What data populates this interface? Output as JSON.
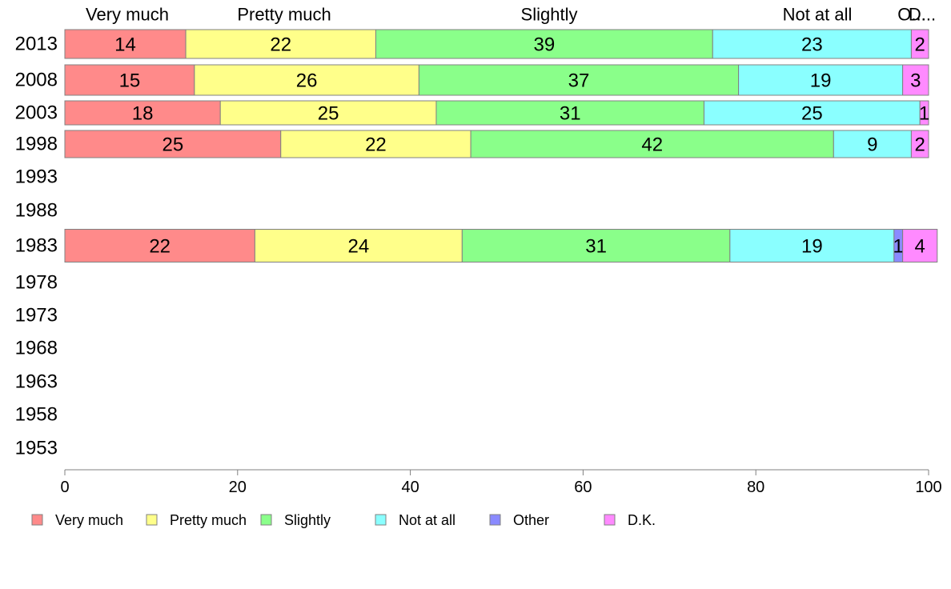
{
  "chart_data": {
    "type": "bar",
    "orientation": "horizontal",
    "stacked": true,
    "categories": [
      "2013",
      "2008",
      "2003",
      "1998",
      "1993",
      "1988",
      "1983",
      "1978",
      "1973",
      "1968",
      "1963",
      "1958",
      "1953"
    ],
    "series": [
      {
        "name": "Very much",
        "color": "#ff8a8a",
        "values": [
          14,
          15,
          18,
          25,
          null,
          null,
          22,
          null,
          null,
          null,
          null,
          null,
          null
        ]
      },
      {
        "name": "Pretty much",
        "color": "#ffff8a",
        "values": [
          22,
          26,
          25,
          22,
          null,
          null,
          24,
          null,
          null,
          null,
          null,
          null,
          null
        ]
      },
      {
        "name": "Slightly",
        "color": "#8aff8a",
        "values": [
          39,
          37,
          31,
          42,
          null,
          null,
          31,
          null,
          null,
          null,
          null,
          null,
          null
        ]
      },
      {
        "name": "Not at all",
        "color": "#8affff",
        "values": [
          23,
          19,
          25,
          9,
          null,
          null,
          19,
          null,
          null,
          null,
          null,
          null,
          null
        ]
      },
      {
        "name": "Other",
        "color": "#8a8aff",
        "values": [
          0,
          0,
          0,
          0,
          null,
          null,
          1,
          null,
          null,
          null,
          null,
          null,
          null
        ]
      },
      {
        "name": "D.K.",
        "color": "#ff8aff",
        "values": [
          2,
          3,
          1,
          2,
          null,
          null,
          4,
          null,
          null,
          null,
          null,
          null,
          null
        ]
      }
    ],
    "top_labels": [
      "Very much",
      "Pretty much",
      "Slightly",
      "Not at all",
      "O...",
      "D..."
    ],
    "xlim": [
      0,
      100
    ],
    "xticks": [
      "0",
      "20",
      "40",
      "60",
      "80",
      "100"
    ],
    "grid": false,
    "legend_position": "bottom-left"
  }
}
